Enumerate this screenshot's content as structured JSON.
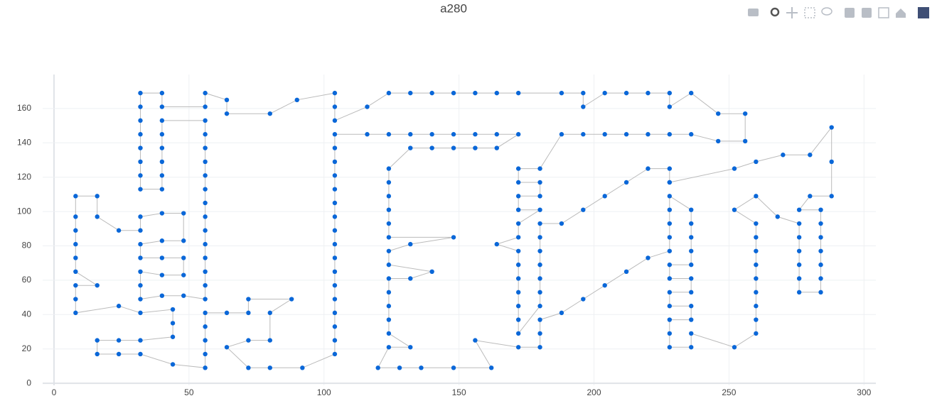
{
  "chart_data": {
    "type": "scatter",
    "title": "a280",
    "x": [
      228,
      252,
      260,
      270,
      280,
      288,
      288,
      288,
      280,
      276,
      284,
      284,
      284,
      284,
      284,
      284,
      284,
      276,
      276,
      276,
      276,
      276,
      276,
      268,
      260,
      252,
      260,
      260,
      260,
      260,
      260,
      260,
      260,
      260,
      260,
      252,
      236,
      236,
      228,
      228,
      228,
      236,
      236,
      228,
      228,
      236,
      236,
      228,
      228,
      236,
      236,
      236,
      236,
      236,
      228,
      228,
      228,
      228,
      228,
      220,
      212,
      204,
      196,
      188,
      180,
      180,
      180,
      172,
      156,
      162,
      148,
      136,
      128,
      120,
      124,
      132,
      124,
      124,
      124,
      124,
      124,
      132,
      140,
      124,
      124,
      132,
      148,
      124,
      124,
      124,
      124,
      124,
      124,
      132,
      140,
      148,
      156,
      164,
      172,
      164,
      156,
      148,
      140,
      132,
      124,
      116,
      104,
      104,
      104,
      104,
      104,
      104,
      104,
      104,
      104,
      104,
      104,
      104,
      104,
      104,
      104,
      104,
      104,
      92,
      80,
      72,
      64,
      72,
      80,
      80,
      88,
      72,
      72,
      64,
      56,
      56,
      56,
      56,
      56,
      44,
      32,
      24,
      16,
      16,
      24,
      32,
      44,
      44,
      44,
      32,
      24,
      8,
      8,
      8,
      16,
      8,
      8,
      8,
      8,
      8,
      8,
      16,
      16,
      24,
      32,
      32,
      40,
      48,
      48,
      40,
      32,
      32,
      40,
      48,
      48,
      40,
      32,
      32,
      32,
      40,
      48,
      56,
      56,
      56,
      56,
      56,
      56,
      56,
      56,
      56,
      56,
      56,
      56,
      56,
      56,
      40,
      40,
      40,
      40,
      40,
      40,
      32,
      32,
      32,
      32,
      32,
      32,
      32,
      32,
      40,
      40,
      56,
      56,
      64,
      64,
      80,
      90,
      104,
      104,
      104,
      116,
      124,
      132,
      140,
      148,
      156,
      164,
      172,
      188,
      196,
      196,
      204,
      212,
      220,
      228,
      228,
      236,
      246,
      256,
      256,
      246,
      236,
      228,
      220,
      212,
      204,
      196,
      188,
      180,
      172,
      172,
      180,
      180,
      172,
      172,
      180,
      172,
      172,
      164,
      172,
      172,
      172,
      172,
      172,
      172,
      172,
      180,
      180,
      180,
      180,
      180,
      180,
      180,
      188,
      196,
      204,
      212,
      220,
      228,
      228
    ],
    "values": [
      117,
      125,
      129,
      133,
      133,
      149,
      129,
      109,
      109,
      101,
      101,
      93,
      85,
      77,
      69,
      61,
      53,
      53,
      61,
      69,
      77,
      85,
      93,
      97,
      109,
      101,
      93,
      85,
      77,
      69,
      61,
      53,
      45,
      37,
      29,
      21,
      29,
      21,
      21,
      29,
      37,
      37,
      45,
      45,
      53,
      53,
      61,
      61,
      69,
      69,
      77,
      85,
      93,
      101,
      109,
      101,
      93,
      85,
      77,
      73,
      65,
      57,
      49,
      41,
      37,
      29,
      21,
      21,
      25,
      9,
      9,
      9,
      9,
      9,
      21,
      21,
      29,
      37,
      45,
      53,
      61,
      61,
      65,
      69,
      77,
      81,
      85,
      85,
      93,
      101,
      109,
      117,
      125,
      137,
      137,
      137,
      137,
      137,
      145,
      145,
      145,
      145,
      145,
      145,
      145,
      145,
      145,
      137,
      129,
      121,
      113,
      105,
      97,
      89,
      81,
      73,
      65,
      57,
      49,
      41,
      33,
      25,
      17,
      9,
      9,
      9,
      21,
      25,
      25,
      41,
      49,
      49,
      41,
      41,
      41,
      33,
      25,
      17,
      9,
      11,
      17,
      17,
      17,
      25,
      25,
      25,
      27,
      35,
      43,
      41,
      45,
      41,
      49,
      57,
      57,
      65,
      73,
      81,
      89,
      97,
      109,
      109,
      97,
      89,
      89,
      97,
      99,
      99,
      83,
      83,
      81,
      73,
      73,
      73,
      63,
      63,
      65,
      57,
      49,
      51,
      51,
      49,
      57,
      65,
      73,
      81,
      89,
      97,
      105,
      113,
      121,
      129,
      137,
      145,
      153,
      153,
      145,
      137,
      129,
      121,
      113,
      113,
      121,
      129,
      137,
      145,
      153,
      161,
      169,
      169,
      161,
      161,
      169,
      165,
      157,
      157,
      165,
      169,
      161,
      153,
      161,
      169,
      169,
      169,
      169,
      169,
      169,
      169,
      169,
      169,
      161,
      169,
      169,
      169,
      169,
      161,
      169,
      157,
      157,
      141,
      141,
      145,
      145,
      145,
      145,
      145,
      145,
      145,
      125,
      125,
      117,
      117,
      109,
      109,
      101,
      101,
      93,
      85,
      81,
      77,
      69,
      61,
      53,
      45,
      37,
      29,
      45,
      53,
      61,
      69,
      77,
      85,
      93,
      93,
      101,
      109,
      117,
      125,
      125,
      117
    ],
    "marker_color": "#0a67d8",
    "line_color": "#bbbbbb",
    "xlim": [
      -4.2,
      304.4
    ],
    "xticks": [
      0,
      50,
      100,
      150,
      200,
      250,
      300
    ],
    "ylim": [
      -1.2,
      179.8
    ],
    "yticks": [
      0,
      20,
      40,
      60,
      80,
      100,
      120,
      140,
      160
    ],
    "grid": true
  }
}
